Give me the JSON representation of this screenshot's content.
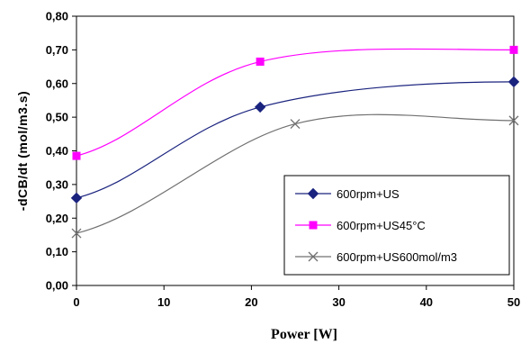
{
  "chart_data": {
    "type": "line",
    "title": "",
    "xlabel": "Power [W]",
    "ylabel": "-dCB/dt (mol/m3.s)",
    "xlim": [
      0,
      50
    ],
    "ylim": [
      0,
      0.8
    ],
    "xticks": [
      "0",
      "10",
      "20",
      "30",
      "40",
      "50"
    ],
    "yticks": [
      "0,00",
      "0,10",
      "0,20",
      "0,30",
      "0,40",
      "0,50",
      "0,60",
      "0,70",
      "0,80"
    ],
    "grid": "none",
    "legend_position": "bottom-right",
    "series": [
      {
        "name": "600rpm+US",
        "color": "#1a237e",
        "marker": "diamond",
        "x": [
          0,
          21,
          50
        ],
        "y": [
          0.26,
          0.53,
          0.605
        ]
      },
      {
        "name": "600rpm+US45°C",
        "color": "#ff00ff",
        "marker": "square",
        "x": [
          0,
          21,
          50
        ],
        "y": [
          0.385,
          0.665,
          0.7
        ]
      },
      {
        "name": "600rpm+US600mol/m3",
        "color": "#707070",
        "marker": "x",
        "x": [
          0,
          25,
          50
        ],
        "y": [
          0.155,
          0.48,
          0.49
        ]
      }
    ]
  }
}
